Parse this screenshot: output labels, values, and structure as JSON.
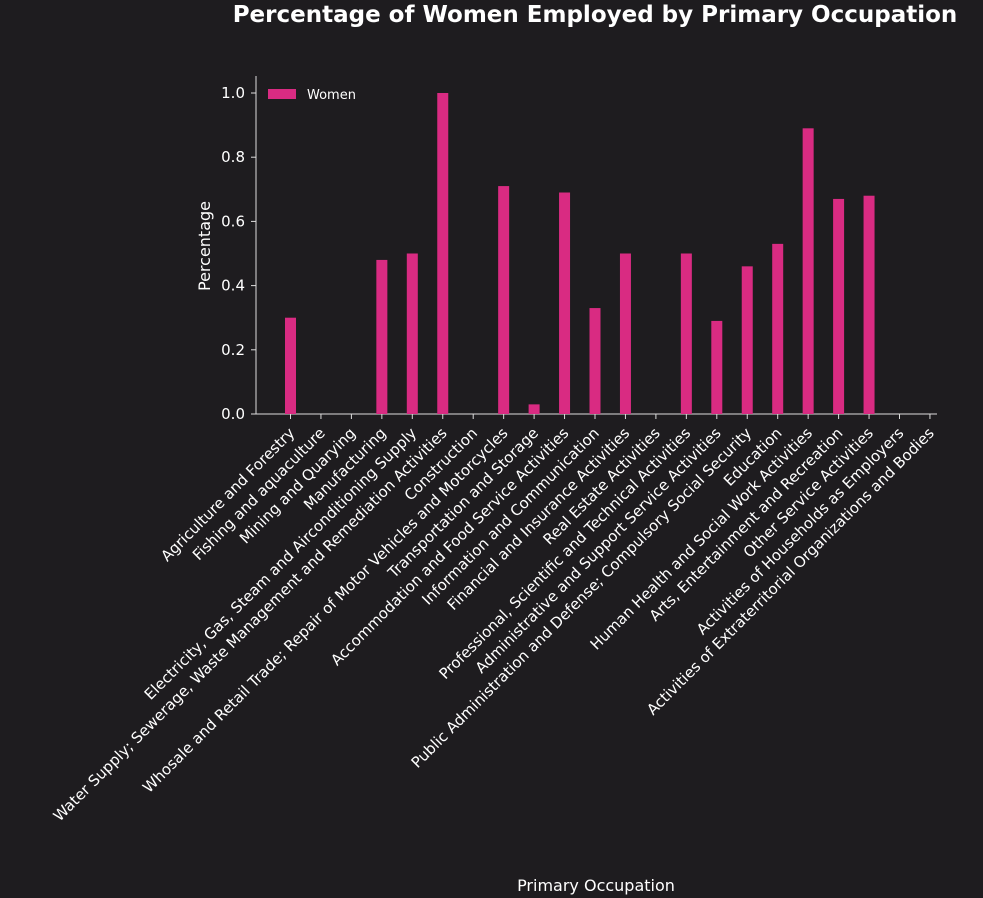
{
  "chart_data": {
    "type": "bar",
    "title": "Percentage of Women Employed by Primary Occupation",
    "xlabel": "Primary Occupation",
    "ylabel": "Percentage",
    "ylim": [
      0,
      1.05
    ],
    "yticks": [
      "0.0",
      "0.2",
      "0.4",
      "0.6",
      "0.8",
      "1.0"
    ],
    "legend_position": "top-left",
    "grid": false,
    "colors": {
      "background": "#1e1c1f",
      "bar": "#d92b82",
      "axis": "#dddddd",
      "text": "#ffffff"
    },
    "categories": [
      "Agriculture and Forestry",
      "Fishing and aquaculture",
      "Mining and Quarying",
      "Manufacturing",
      "Electricity, Gas, Steam and Airconditioning Supply",
      "Water Supply; Sewerage, Waste Management and Remediation Activities",
      "Construction",
      "Whosale and Retail Trade; Repair of Motor Vehicles and Motorcycles",
      "Transportation and Storage",
      "Accommodation and Food Service Activities",
      "Information and Communication",
      "Financial and Insurance Activities",
      "Real Estate Activities",
      "Professional, Scientific  and Technical Activities",
      "Administrative and Support Service Activities",
      "Public Administration and Defense; Compulsory Social Security",
      "Education",
      "Human Health and Social Work Activities",
      "Arts, Entertainment and Recreation",
      "Other Service Activities",
      "Activities of Households as Employers",
      "Activities of Extraterritorial Organizations and Bodies"
    ],
    "series": [
      {
        "name": "Women",
        "values": [
          0.3,
          0.0,
          0.0,
          0.48,
          0.5,
          1.0,
          0.0,
          0.71,
          0.03,
          0.69,
          0.33,
          0.5,
          0.0,
          0.5,
          0.29,
          0.46,
          0.53,
          0.89,
          0.67,
          0.68,
          0.0,
          0.0
        ]
      }
    ]
  }
}
